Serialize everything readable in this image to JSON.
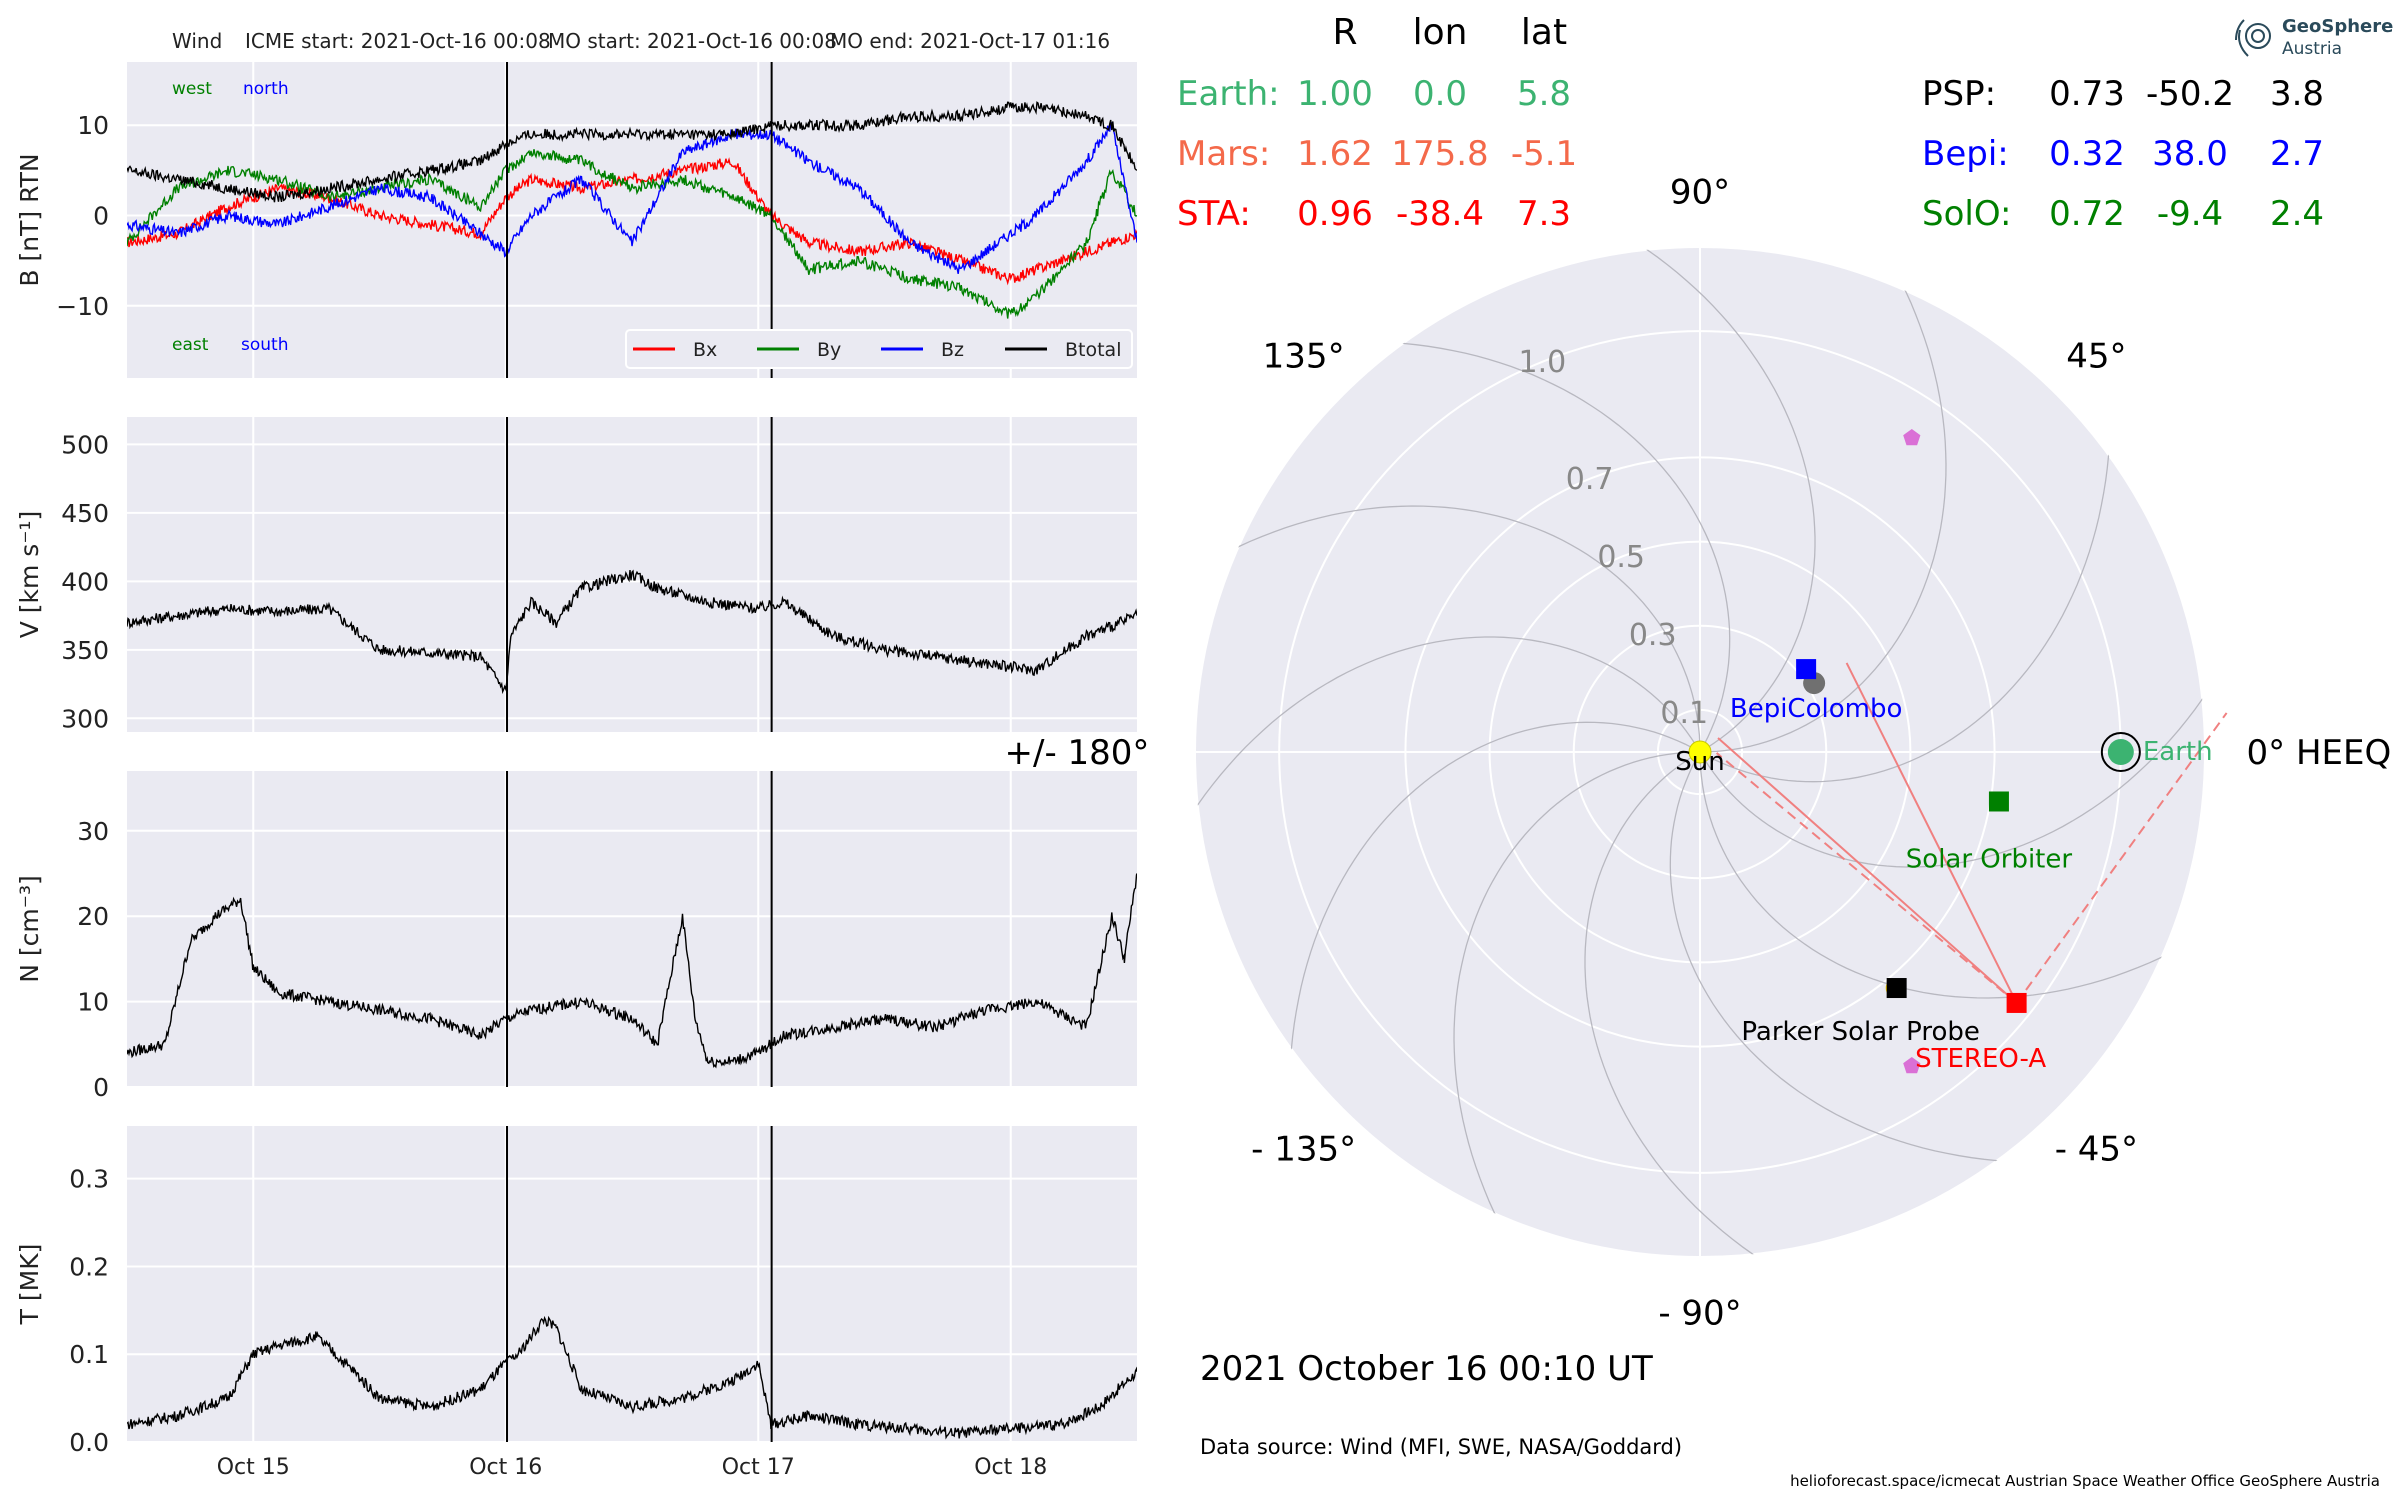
{
  "header": {
    "spacecraft": "Wind",
    "icme_start": "ICME start: 2021-Oct-16 00:08",
    "mo_start": "MO start: 2021-Oct-16 00:08",
    "mo_end": "MO end: 2021-Oct-17 01:16"
  },
  "position_table": {
    "columns": [
      "R",
      "lon",
      "lat"
    ],
    "rows": [
      {
        "name": "Earth:",
        "R": "1.00",
        "lon": "0.0",
        "lat": "5.8",
        "color": "#3cb371"
      },
      {
        "name": "Mars:",
        "R": "1.62",
        "lon": "175.8",
        "lat": "-5.1",
        "color": "#f4694a"
      },
      {
        "name": "STA:",
        "R": "0.96",
        "lon": "-38.4",
        "lat": "7.3",
        "color": "#ff0000"
      },
      {
        "name": "PSP:",
        "R": "0.73",
        "lon": "-50.2",
        "lat": "3.8",
        "color": "#000000"
      },
      {
        "name": "Bepi:",
        "R": "0.32",
        "lon": "38.0",
        "lat": "2.7",
        "color": "#0000ff"
      },
      {
        "name": "SolO:",
        "R": "0.72",
        "lon": "-9.4",
        "lat": "2.4",
        "color": "#008000"
      }
    ]
  },
  "logo": {
    "line1": "GeoSphere",
    "line2": "Austria"
  },
  "timestamp": "2021 October 16  00:10 UT",
  "data_source": "Data source: Wind (MFI, SWE, NASA/Goddard)",
  "footer": "helioforecast.space/icmecat   Austrian Space Weather Office   GeoSphere Austria",
  "chart_data": [
    {
      "type": "line",
      "panel": "magnetic-field",
      "ylabel": "B [nT] RTN",
      "ylim": [
        -18,
        17
      ],
      "yticks": [
        {
          "v": 10,
          "label": "10"
        },
        {
          "v": 0,
          "label": "0"
        },
        {
          "v": -10,
          "label": "−10"
        }
      ],
      "xlim_days": [
        0,
        4
      ],
      "xticks": [
        {
          "v": 0.5,
          "label": "Oct 15"
        },
        {
          "v": 1.5,
          "label": "Oct 16"
        },
        {
          "v": 2.5,
          "label": "Oct 17"
        },
        {
          "v": 3.5,
          "label": "Oct 18"
        }
      ],
      "event_lines_days": [
        1.505,
        2.553
      ],
      "annotations": {
        "west": "west",
        "north": "north",
        "east": "east",
        "south": "south"
      },
      "legend": [
        "Bx",
        "By",
        "Bz",
        "Btotal"
      ],
      "series": [
        {
          "name": "Bx",
          "color": "#ff0000",
          "x": [
            0,
            0.2,
            0.4,
            0.6,
            0.8,
            1.0,
            1.2,
            1.4,
            1.5,
            1.6,
            1.8,
            2.0,
            2.2,
            2.4,
            2.55,
            2.7,
            2.9,
            3.1,
            3.3,
            3.5,
            3.6,
            3.8,
            3.9,
            4.0
          ],
          "y": [
            -3,
            -2,
            1,
            3,
            2,
            0,
            -1,
            -2,
            2,
            4,
            3,
            4,
            5,
            6,
            0,
            -3,
            -4,
            -3,
            -5,
            -7,
            -6,
            -4,
            -3,
            -2
          ]
        },
        {
          "name": "By",
          "color": "#008000",
          "x": [
            0,
            0.2,
            0.4,
            0.6,
            0.8,
            1.0,
            1.2,
            1.4,
            1.5,
            1.6,
            1.8,
            2.0,
            2.2,
            2.4,
            2.55,
            2.7,
            2.9,
            3.1,
            3.3,
            3.5,
            3.6,
            3.8,
            3.9,
            4.0
          ],
          "y": [
            -3,
            3,
            5,
            4,
            2,
            3,
            4,
            1,
            5,
            7,
            6,
            3,
            4,
            2,
            0,
            -6,
            -5,
            -7,
            -8,
            -11,
            -9,
            -3,
            5,
            0
          ]
        },
        {
          "name": "Bz",
          "color": "#0000ff",
          "x": [
            0,
            0.2,
            0.4,
            0.6,
            0.8,
            1.0,
            1.2,
            1.4,
            1.5,
            1.6,
            1.8,
            2.0,
            2.2,
            2.4,
            2.55,
            2.7,
            2.9,
            3.1,
            3.3,
            3.5,
            3.6,
            3.8,
            3.9,
            4.0
          ],
          "y": [
            -1,
            -2,
            0,
            -1,
            1,
            3,
            2,
            -2,
            -4,
            0,
            4,
            -3,
            7,
            9,
            9,
            6,
            3,
            -3,
            -6,
            -2,
            0,
            6,
            10,
            -3
          ]
        },
        {
          "name": "Btotal",
          "color": "#000000",
          "x": [
            0,
            0.2,
            0.4,
            0.6,
            0.8,
            1.0,
            1.2,
            1.4,
            1.5,
            1.6,
            1.8,
            2.0,
            2.2,
            2.4,
            2.55,
            2.7,
            2.9,
            3.1,
            3.3,
            3.5,
            3.6,
            3.8,
            3.9,
            4.0
          ],
          "y": [
            5,
            4,
            3,
            2,
            3,
            4,
            5,
            6,
            8,
            9,
            9,
            9,
            9,
            9,
            10,
            10,
            10,
            11,
            11,
            12,
            12,
            11,
            10,
            5
          ]
        }
      ]
    },
    {
      "type": "line",
      "panel": "speed",
      "ylabel": "V [km s⁻¹]",
      "ylim": [
        290,
        520
      ],
      "yticks": [
        {
          "v": 300,
          "label": "300"
        },
        {
          "v": 350,
          "label": "350"
        },
        {
          "v": 400,
          "label": "400"
        },
        {
          "v": 450,
          "label": "450"
        },
        {
          "v": 500,
          "label": "500"
        }
      ],
      "series": [
        {
          "name": "V",
          "color": "#000000",
          "x": [
            0,
            0.2,
            0.4,
            0.6,
            0.8,
            0.9,
            1.0,
            1.2,
            1.4,
            1.5,
            1.52,
            1.6,
            1.7,
            1.8,
            1.9,
            2.0,
            2.1,
            2.3,
            2.5,
            2.6,
            2.8,
            3.0,
            3.2,
            3.4,
            3.6,
            3.8,
            4.0
          ],
          "y": [
            370,
            375,
            380,
            378,
            380,
            365,
            350,
            348,
            345,
            320,
            360,
            385,
            370,
            395,
            400,
            405,
            395,
            385,
            380,
            385,
            360,
            350,
            345,
            340,
            335,
            360,
            375
          ]
        }
      ]
    },
    {
      "type": "line",
      "panel": "density",
      "ylabel": "N [cm⁻³]",
      "ylim": [
        0,
        37
      ],
      "yticks": [
        {
          "v": 0,
          "label": "0"
        },
        {
          "v": 10,
          "label": "10"
        },
        {
          "v": 20,
          "label": "20"
        },
        {
          "v": 30,
          "label": "30"
        }
      ],
      "series": [
        {
          "name": "N",
          "color": "#000000",
          "x": [
            0,
            0.15,
            0.25,
            0.35,
            0.45,
            0.5,
            0.6,
            0.8,
            1.0,
            1.2,
            1.4,
            1.5,
            1.6,
            1.8,
            2.0,
            2.1,
            2.2,
            2.25,
            2.3,
            2.4,
            2.5,
            2.6,
            2.8,
            3.0,
            3.2,
            3.4,
            3.6,
            3.8,
            3.9,
            3.95,
            4.0
          ],
          "y": [
            4,
            5,
            17,
            20,
            22,
            14,
            11,
            10,
            9,
            8,
            6,
            8,
            9,
            10,
            8,
            5,
            20,
            8,
            3,
            3,
            4,
            6,
            7,
            8,
            7,
            9,
            10,
            7,
            20,
            15,
            25
          ]
        }
      ]
    },
    {
      "type": "line",
      "panel": "temperature",
      "ylabel": "T [MK]",
      "ylim": [
        0,
        0.36
      ],
      "yticks": [
        {
          "v": 0,
          "label": "0.0"
        },
        {
          "v": 0.1,
          "label": "0.1"
        },
        {
          "v": 0.2,
          "label": "0.2"
        },
        {
          "v": 0.3,
          "label": "0.3"
        }
      ],
      "series": [
        {
          "name": "T",
          "color": "#000000",
          "x": [
            0,
            0.2,
            0.4,
            0.5,
            0.6,
            0.75,
            0.9,
            1.0,
            1.2,
            1.4,
            1.5,
            1.55,
            1.65,
            1.7,
            1.8,
            2.0,
            2.2,
            2.4,
            2.5,
            2.55,
            2.7,
            2.9,
            3.1,
            3.3,
            3.5,
            3.7,
            3.85,
            4.0
          ],
          "y": [
            0.02,
            0.03,
            0.05,
            0.1,
            0.11,
            0.12,
            0.08,
            0.05,
            0.04,
            0.06,
            0.09,
            0.1,
            0.14,
            0.13,
            0.06,
            0.04,
            0.05,
            0.07,
            0.09,
            0.02,
            0.03,
            0.02,
            0.015,
            0.01,
            0.015,
            0.02,
            0.04,
            0.08
          ]
        }
      ]
    },
    {
      "type": "polar",
      "panel": "orbit-plot",
      "angle_labels": [
        {
          "deg": 0,
          "label": "0° HEEQ"
        },
        {
          "deg": 45,
          "label": "45°"
        },
        {
          "deg": 90,
          "label": "90°"
        },
        {
          "deg": 135,
          "label": "135°"
        },
        {
          "deg": 180,
          "label": "+/- 180°"
        },
        {
          "deg": -135,
          "label": "- 135°"
        },
        {
          "deg": -90,
          "label": "- 90°"
        },
        {
          "deg": -45,
          "label": "- 45°"
        }
      ],
      "radial_ticks": [
        {
          "r": 0.1,
          "label": "0.1"
        },
        {
          "r": 0.3,
          "label": "0.3"
        },
        {
          "r": 0.5,
          "label": "0.5"
        },
        {
          "r": 0.7,
          "label": "0.7"
        },
        {
          "r": 1.0,
          "label": "1.0"
        }
      ],
      "rmax": 1.2,
      "bodies": [
        {
          "name": "Sun",
          "label": "Sun",
          "r": 0,
          "lon": 0,
          "marker": "circle",
          "color": "#ffff00"
        },
        {
          "name": "Earth",
          "label": "Earth",
          "r": 1.0,
          "lon": 0,
          "marker": "circle",
          "color": "#3cb371"
        },
        {
          "name": "BepiColombo",
          "label": "BepiColombo",
          "r": 0.32,
          "lon": 38,
          "marker": "square",
          "color": "#0000ff"
        },
        {
          "name": "Solar Orbiter",
          "label": "Solar Orbiter",
          "r": 0.72,
          "lon": -9.4,
          "marker": "square",
          "color": "#008000"
        },
        {
          "name": "Parker Solar Probe",
          "label": "Parker Solar Probe",
          "r": 0.73,
          "lon": -50.2,
          "marker": "square",
          "color": "#000000"
        },
        {
          "name": "STEREO-A",
          "label": "STEREO-A",
          "r": 0.96,
          "lon": -38.4,
          "marker": "square",
          "color": "#ff0000"
        }
      ],
      "extra_points": [
        {
          "r": 0.9,
          "lon": 56,
          "color": "#da70d6"
        },
        {
          "r": 0.9,
          "lon": -56,
          "color": "#da70d6"
        }
      ]
    }
  ]
}
